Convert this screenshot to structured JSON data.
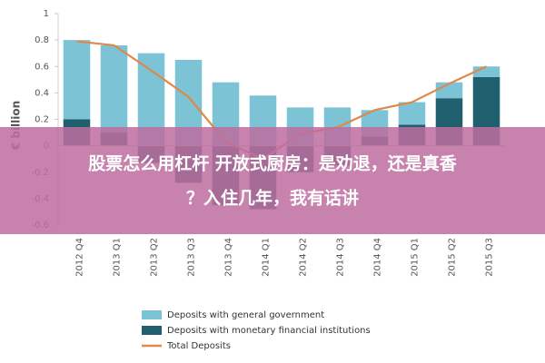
{
  "chart_data": {
    "type": "bar",
    "y_label": "€ billion",
    "categories": [
      "2012 Q4",
      "2013 Q1",
      "2013 Q2",
      "2013 Q3",
      "2013 Q4",
      "2014 Q1",
      "2014 Q2",
      "2014 Q3",
      "2014 Q4",
      "2015 Q1",
      "2015 Q2",
      "2015 Q3"
    ],
    "series": [
      {
        "name": "Deposits with general government",
        "color": "#7cc3d6",
        "values": [
          0.6,
          0.66,
          0.7,
          0.65,
          0.48,
          0.38,
          0.29,
          0.29,
          0.2,
          0.17,
          0.12,
          0.08
        ]
      },
      {
        "name": "Deposits with monetary financial institutions",
        "color": "#1f5f6e",
        "values": [
          0.2,
          0.1,
          -0.13,
          -0.28,
          -0.45,
          -0.48,
          -0.2,
          -0.15,
          0.07,
          0.16,
          0.36,
          0.52
        ]
      },
      {
        "name": "Total Deposits",
        "color": "#e0884a",
        "type": "line",
        "values": [
          0.79,
          0.76,
          0.57,
          0.37,
          0.03,
          -0.1,
          0.09,
          0.14,
          0.27,
          0.33,
          0.47,
          0.6
        ]
      }
    ],
    "ylim": [
      -0.6,
      1
    ],
    "yticks": [
      -0.6,
      -0.4,
      -0.2,
      0,
      0.2,
      0.4,
      0.6,
      0.8,
      1
    ]
  },
  "overlay": {
    "lines": [
      "股票怎么用杠杆 开放式厨房：是劝退，还是真香",
      "？入住几年，我有话讲"
    ]
  }
}
